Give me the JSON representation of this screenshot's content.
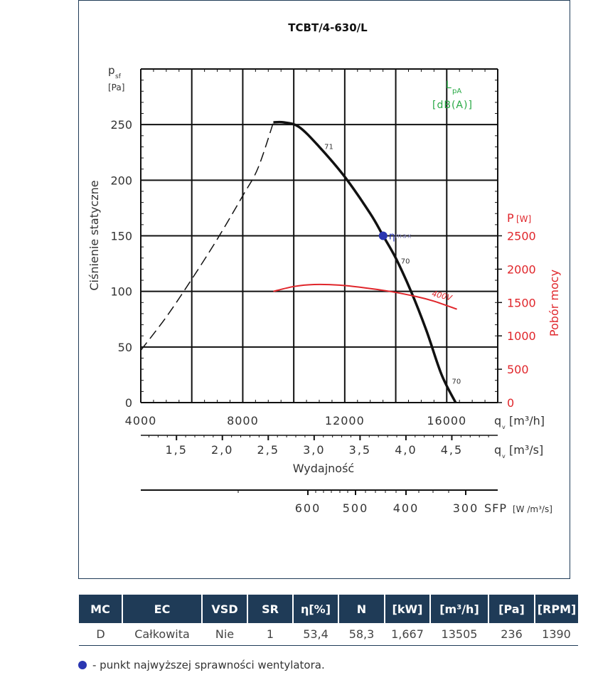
{
  "chart_data": {
    "type": "line",
    "title": "TCBT/4-630/L",
    "ylabel": "Ciśnienie statyczne",
    "ysymbol": "p",
    "ysymbol_sub": "sf",
    "yunit": "[Pa]",
    "xlabel": "Wydajność",
    "ylabel_right": "Pobór mocy",
    "yunit_right": "[W]",
    "yunit_right_symbol": "P",
    "sound_symbol": "L",
    "sound_symbol_sub": "pA",
    "sound_unit": "[dB(A)]",
    "xlim": [
      4000,
      18000
    ],
    "ylim": [
      0,
      300
    ],
    "ylim_right": [
      0,
      5000
    ],
    "x_ticks": [
      4000,
      8000,
      12000,
      16000
    ],
    "x_tick_labels": [
      "4000",
      "8000",
      "12000",
      "16000"
    ],
    "x_axis_unit_m3h": "[m³/h]",
    "x_axis_symbol": "q",
    "x_axis_symbol_sub": "v",
    "x2_ticks": [
      1.5,
      2.0,
      2.5,
      3.0,
      3.5,
      4.0,
      4.5
    ],
    "x2_tick_labels": [
      "1,5",
      "2,0",
      "2,5",
      "3,0",
      "3,5",
      "4,0",
      "4,5"
    ],
    "x2_unit": "[m³/s]",
    "y_ticks": [
      0,
      50,
      100,
      150,
      200,
      250
    ],
    "y_tick_labels": [
      "0",
      "50",
      "100",
      "150",
      "200",
      "250"
    ],
    "y_right_ticks": [
      0,
      500,
      1000,
      1500,
      2000,
      2500
    ],
    "y_right_tick_labels": [
      "0",
      "500",
      "1000",
      "1500",
      "2000",
      "2500"
    ],
    "sfp_ticks": [
      600,
      500,
      400,
      300
    ],
    "sfp_tick_labels": [
      "600",
      "500",
      "400",
      "300"
    ],
    "sfp_label": "SFP",
    "sfp_unit": "[W /m³/s]",
    "grid": true,
    "series": [
      {
        "kind": "pressure-stable",
        "axis": "left",
        "color": "#111111",
        "x": [
          9200,
          9600,
          10200,
          11000,
          12000,
          13000,
          13505,
          14000,
          14600,
          15200,
          15800,
          16350
        ],
        "y": [
          252,
          252,
          248,
          230,
          203,
          170,
          150,
          130,
          100,
          65,
          25,
          0
        ]
      },
      {
        "kind": "pressure-unstable",
        "axis": "left",
        "color": "#111111",
        "x": [
          4000,
          5000,
          6000,
          7000,
          8000,
          8600,
          9200
        ],
        "y": [
          47,
          77,
          111,
          147,
          186,
          211,
          252
        ]
      },
      {
        "name": "400V",
        "kind": "power",
        "axis": "right",
        "color": "#e0262b",
        "x": [
          9200,
          10000,
          10800,
          11800,
          12800,
          13800,
          14800,
          15500,
          16400
        ],
        "y": [
          1667,
          1740,
          1770,
          1760,
          1720,
          1665,
          1590,
          1520,
          1400
        ]
      }
    ],
    "sound_labels": [
      {
        "text": "71",
        "x": 11200,
        "y": 228
      },
      {
        "text": "70",
        "x": 14200,
        "y": 125
      },
      {
        "text": "70",
        "x": 16200,
        "y": 17
      }
    ],
    "eta_max_point": {
      "x": 13505,
      "y": 150,
      "label": "η",
      "label_sub": "max",
      "color": "#2a36b1"
    }
  },
  "table": {
    "headers": [
      "MC",
      "EC",
      "VSD",
      "SR",
      "η[%]",
      "N",
      "[kW]",
      "[m³/h]",
      "[Pa]",
      "[RPM]"
    ],
    "row": [
      "D",
      "Całkowita",
      "Nie",
      "1",
      "53,4",
      "58,3",
      "1,667",
      "13505",
      "236",
      "1390"
    ]
  },
  "footnote": "- punkt najwyższej sprawności wentylatora.",
  "colors": {
    "header_bg": "#1f3b57",
    "accent_red": "#e0262b",
    "sound_green": "#27a844",
    "eta_blue": "#2a36b1"
  }
}
